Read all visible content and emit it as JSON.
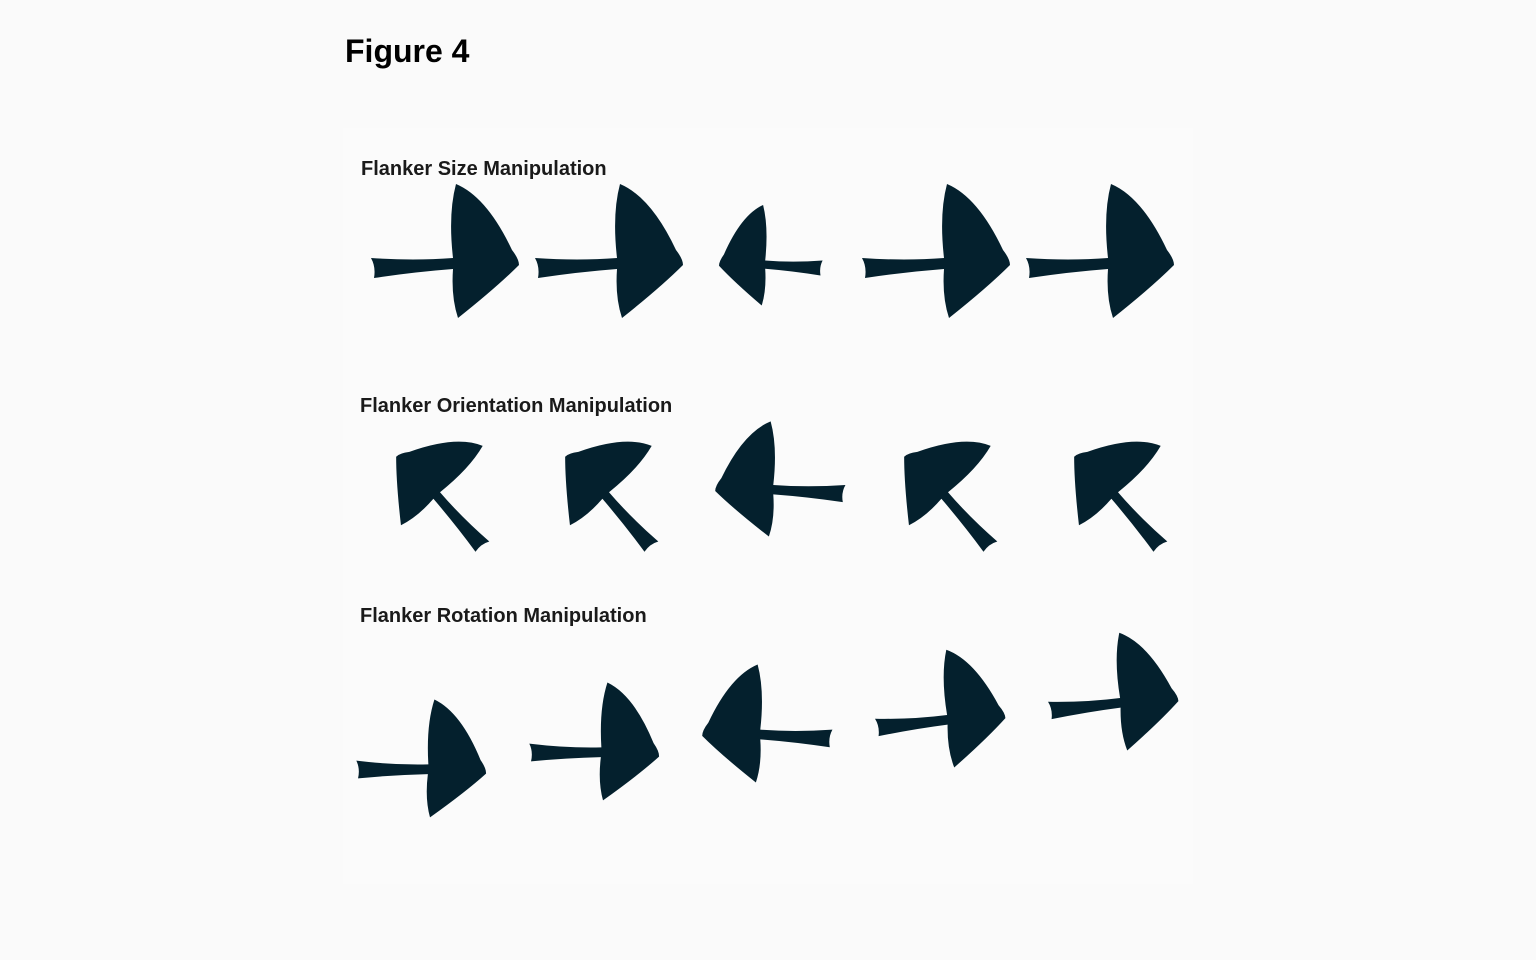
{
  "figure": {
    "title": "Figure 4"
  },
  "colors": {
    "background": "#fafafa",
    "bird": "#04202d",
    "text": "#1a1a1a"
  },
  "icon_names": [
    "bird-icon"
  ],
  "rows": [
    {
      "key": "size",
      "title": "Flanker Size Manipulation",
      "birds": [
        {
          "role": "flanker",
          "direction": "right"
        },
        {
          "role": "flanker",
          "direction": "right"
        },
        {
          "role": "target",
          "direction": "left"
        },
        {
          "role": "flanker",
          "direction": "right"
        },
        {
          "role": "flanker",
          "direction": "right"
        }
      ]
    },
    {
      "key": "orientation",
      "title": "Flanker Orientation Manipulation",
      "birds": [
        {
          "role": "flanker",
          "direction": "up-left"
        },
        {
          "role": "flanker",
          "direction": "up-left"
        },
        {
          "role": "target",
          "direction": "left"
        },
        {
          "role": "flanker",
          "direction": "up-left"
        },
        {
          "role": "flanker",
          "direction": "up-left"
        }
      ]
    },
    {
      "key": "rotation",
      "title": "Flanker Rotation Manipulation",
      "birds": [
        {
          "role": "flanker",
          "direction": "right"
        },
        {
          "role": "flanker",
          "direction": "right"
        },
        {
          "role": "target",
          "direction": "left"
        },
        {
          "role": "flanker",
          "direction": "right"
        },
        {
          "role": "flanker",
          "direction": "right"
        }
      ]
    }
  ]
}
